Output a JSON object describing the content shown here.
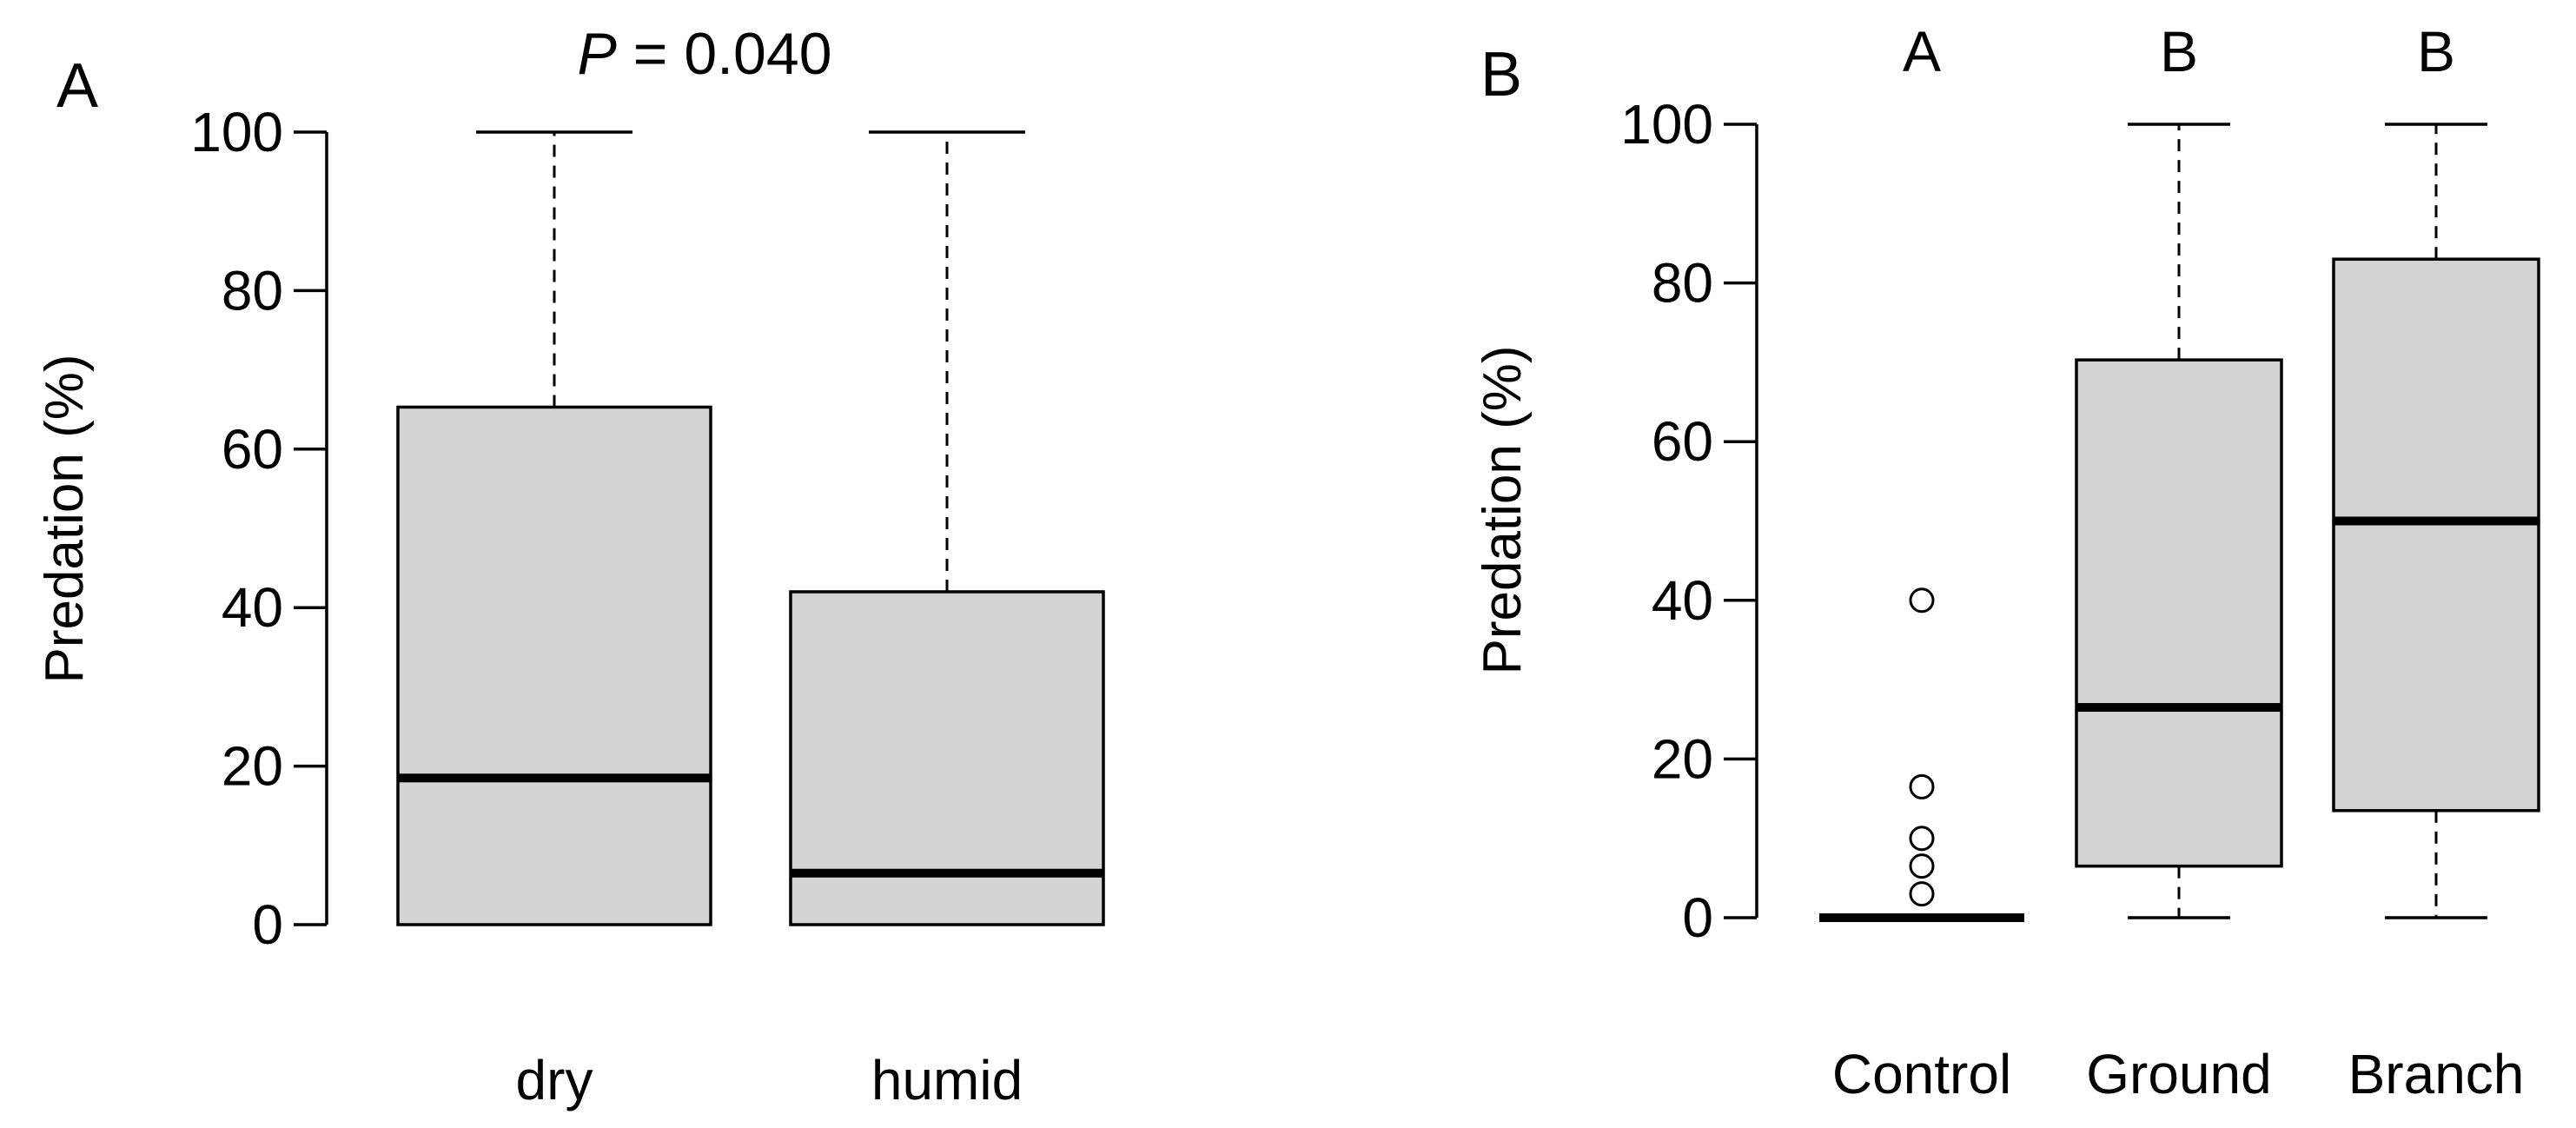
{
  "chart_data": [
    {
      "type": "boxplot",
      "panel_label": "A",
      "title_italic": "P",
      "title_rest": " = 0.040",
      "ylabel": "Predation (%)",
      "ylim": [
        0,
        100
      ],
      "yticks": [
        0,
        20,
        40,
        60,
        80,
        100
      ],
      "categories": [
        "dry",
        "humid"
      ],
      "boxes": [
        {
          "category": "dry",
          "whisker_low": 0,
          "q1": 0,
          "median": 18.5,
          "q3": 65.3,
          "whisker_high": 100,
          "outliers": []
        },
        {
          "category": "humid",
          "whisker_low": 0,
          "q1": 0,
          "median": 6.5,
          "q3": 42,
          "whisker_high": 100,
          "outliers": []
        }
      ],
      "box_color": "#d3d3d3"
    },
    {
      "type": "boxplot",
      "panel_label": "B",
      "ylabel": "Predation (%)",
      "ylim": [
        0,
        100
      ],
      "yticks": [
        0,
        20,
        40,
        60,
        80,
        100
      ],
      "categories": [
        "Control",
        "Ground",
        "Branch"
      ],
      "group_letters": [
        "A",
        "B",
        "B"
      ],
      "boxes": [
        {
          "category": "Control",
          "whisker_low": 0,
          "q1": 0,
          "median": 0,
          "q3": 0,
          "whisker_high": 0,
          "outliers": [
            3,
            6.5,
            10,
            16.5,
            40
          ]
        },
        {
          "category": "Ground",
          "whisker_low": 0,
          "q1": 6.5,
          "median": 26.5,
          "q3": 70.3,
          "whisker_high": 100,
          "outliers": []
        },
        {
          "category": "Branch",
          "whisker_low": 0,
          "q1": 13.5,
          "median": 50,
          "q3": 83,
          "whisker_high": 100,
          "outliers": []
        }
      ],
      "box_color": "#d3d3d3"
    }
  ]
}
